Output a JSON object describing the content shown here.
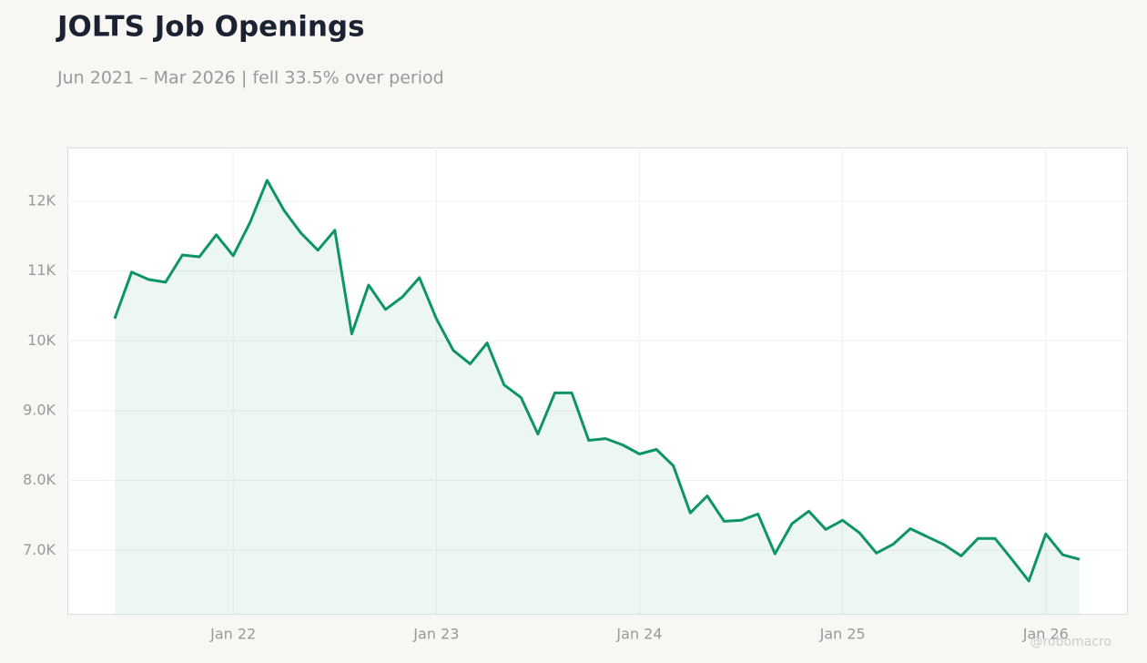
{
  "chart_data": {
    "type": "line",
    "title": "JOLTS Job Openings",
    "subtitle": "Jun 2021 – Mar 2026 | fell 33.5% over period",
    "watermark": "@robomacro",
    "x": [
      "2021-06",
      "2021-07",
      "2021-08",
      "2021-09",
      "2021-10",
      "2021-11",
      "2021-12",
      "2022-01",
      "2022-02",
      "2022-03",
      "2022-04",
      "2022-05",
      "2022-06",
      "2022-07",
      "2022-08",
      "2022-09",
      "2022-10",
      "2022-11",
      "2022-12",
      "2023-01",
      "2023-02",
      "2023-03",
      "2023-04",
      "2023-05",
      "2023-06",
      "2023-07",
      "2023-08",
      "2023-09",
      "2023-10",
      "2023-11",
      "2023-12",
      "2024-01",
      "2024-02",
      "2024-03",
      "2024-04",
      "2024-05",
      "2024-06",
      "2024-07",
      "2024-08",
      "2024-09",
      "2024-10",
      "2024-11",
      "2024-12",
      "2025-01",
      "2025-02",
      "2025-03",
      "2025-04",
      "2025-05",
      "2025-06",
      "2025-07",
      "2025-08",
      "2025-09",
      "2025-10",
      "2025-11",
      "2025-12",
      "2026-01",
      "2026-02",
      "2026-03"
    ],
    "series": [
      {
        "name": "Job Openings",
        "color": "#0e9466",
        "values": [
          10320,
          10985,
          10880,
          10840,
          11230,
          11205,
          11520,
          11220,
          11700,
          12300,
          11870,
          11545,
          11300,
          11585,
          10100,
          10800,
          10450,
          10630,
          10905,
          10320,
          9865,
          9670,
          9970,
          9370,
          9190,
          8665,
          9255,
          9255,
          8575,
          8600,
          8510,
          8380,
          8445,
          8210,
          7535,
          7780,
          7415,
          7430,
          7520,
          6950,
          7380,
          7560,
          7300,
          7430,
          7250,
          6960,
          7090,
          7310,
          7195,
          7080,
          6920,
          7170,
          7170,
          6870,
          6560,
          7235,
          6935,
          6870
        ]
      }
    ],
    "ylim": [
      6090,
      12770
    ],
    "yticks": [
      {
        "value": 7000,
        "label": "7.0K"
      },
      {
        "value": 8000,
        "label": "8.0K"
      },
      {
        "value": 9000,
        "label": "9.0K"
      },
      {
        "value": 10000,
        "label": "10K"
      },
      {
        "value": 11000,
        "label": "11K"
      },
      {
        "value": 12000,
        "label": "12K"
      }
    ],
    "xticks": [
      {
        "value": "2022-01",
        "label": "Jan 22"
      },
      {
        "value": "2023-01",
        "label": "Jan 23"
      },
      {
        "value": "2024-01",
        "label": "Jan 24"
      },
      {
        "value": "2025-01",
        "label": "Jan 25"
      },
      {
        "value": "2026-01",
        "label": "Jan 26"
      }
    ],
    "grid": true
  }
}
